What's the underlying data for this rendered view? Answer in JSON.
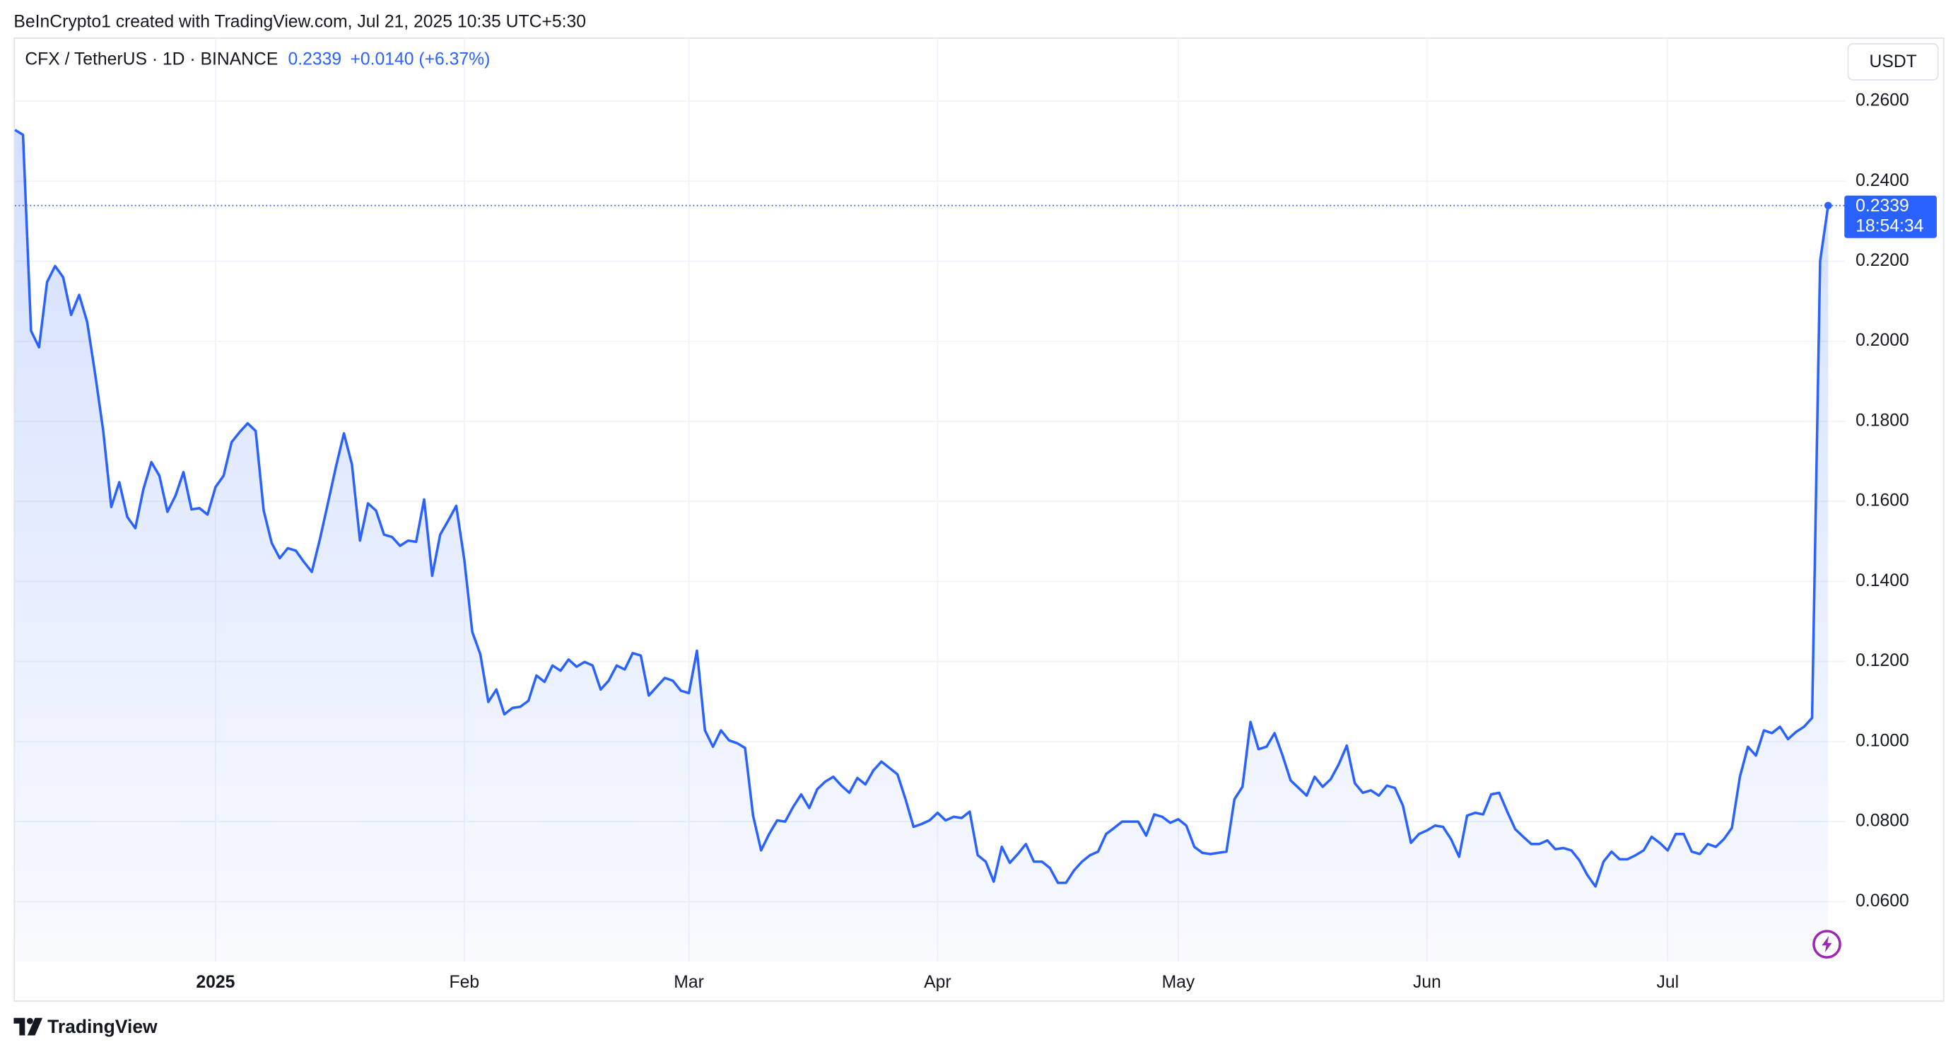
{
  "header": "BeInCrypto1 created with TradingView.com, Jul 21, 2025 10:35 UTC+5:30",
  "footer": "TradingView",
  "chart_data": {
    "type": "line",
    "title": "CFX / TetherUS · 1D · BINANCE",
    "change_label": "+0.0140 (+6.37%)",
    "currency": "USDT",
    "countdown": "18:54:34",
    "color": "#2962ff",
    "grid": true,
    "ylim": [
      0.045,
      0.2759
    ],
    "yticks": [
      {
        "value": 0.06,
        "label": "0.0600"
      },
      {
        "value": 0.08,
        "label": "0.0800"
      },
      {
        "value": 0.1,
        "label": "0.1000"
      },
      {
        "value": 0.12,
        "label": "0.1200"
      },
      {
        "value": 0.14,
        "label": "0.1400"
      },
      {
        "value": 0.16,
        "label": "0.1600"
      },
      {
        "value": 0.18,
        "label": "0.1800"
      },
      {
        "value": 0.2,
        "label": "0.2000"
      },
      {
        "value": 0.22,
        "label": "0.2200"
      },
      {
        "value": 0.24,
        "label": "0.2400"
      },
      {
        "value": 0.26,
        "label": "0.2600"
      }
    ],
    "categories": [
      null,
      null,
      null,
      null,
      null,
      null,
      null,
      null,
      null,
      null,
      null,
      null,
      null,
      null,
      null,
      null,
      null,
      null,
      null,
      null,
      null,
      null,
      null,
      null,
      null,
      "2025",
      null,
      null,
      null,
      null,
      null,
      null,
      null,
      null,
      null,
      null,
      null,
      null,
      null,
      null,
      null,
      null,
      null,
      null,
      null,
      null,
      null,
      null,
      null,
      null,
      null,
      null,
      null,
      null,
      null,
      null,
      "Feb",
      null,
      null,
      null,
      null,
      null,
      null,
      null,
      null,
      null,
      null,
      null,
      null,
      null,
      null,
      null,
      null,
      null,
      null,
      null,
      null,
      null,
      null,
      null,
      null,
      null,
      null,
      null,
      "Mar",
      null,
      null,
      null,
      null,
      null,
      null,
      null,
      null,
      null,
      null,
      null,
      null,
      null,
      null,
      null,
      null,
      null,
      null,
      null,
      null,
      null,
      null,
      null,
      null,
      null,
      null,
      null,
      null,
      null,
      null,
      "Apr",
      null,
      null,
      null,
      null,
      null,
      null,
      null,
      null,
      null,
      null,
      null,
      null,
      null,
      null,
      null,
      null,
      null,
      null,
      null,
      null,
      null,
      null,
      null,
      null,
      null,
      null,
      null,
      null,
      null,
      "May",
      null,
      null,
      null,
      null,
      null,
      null,
      null,
      null,
      null,
      null,
      null,
      null,
      null,
      null,
      null,
      null,
      null,
      null,
      null,
      null,
      null,
      null,
      null,
      null,
      null,
      null,
      null,
      null,
      null,
      null,
      "Jun",
      null,
      null,
      null,
      null,
      null,
      null,
      null,
      null,
      null,
      null,
      null,
      null,
      null,
      null,
      null,
      null,
      null,
      null,
      null,
      null,
      null,
      null,
      null,
      null,
      null,
      null,
      null,
      null,
      null,
      "Jul",
      null,
      null,
      null,
      null,
      null,
      null,
      null,
      null,
      null,
      null,
      null,
      null,
      null,
      null,
      null,
      null,
      null,
      null,
      null,
      null
    ],
    "values": [
      0.2528,
      0.2516,
      0.2026,
      0.1985,
      0.2148,
      0.2188,
      0.216,
      0.2066,
      0.2116,
      0.2048,
      0.1917,
      0.1776,
      0.1586,
      0.1648,
      0.1561,
      0.1533,
      0.163,
      0.1698,
      0.1664,
      0.1574,
      0.1614,
      0.1673,
      0.158,
      0.1583,
      0.1567,
      0.1636,
      0.1664,
      0.1748,
      0.1773,
      0.1795,
      0.1776,
      0.1577,
      0.1496,
      0.1458,
      0.1483,
      0.1477,
      0.1449,
      0.1424,
      0.1505,
      0.1595,
      0.1686,
      0.177,
      0.1692,
      0.1502,
      0.1595,
      0.1577,
      0.1517,
      0.1511,
      0.1489,
      0.1502,
      0.1499,
      0.1605,
      0.1414,
      0.1517,
      0.1552,
      0.1589,
      0.1455,
      0.1274,
      0.1218,
      0.1099,
      0.113,
      0.1068,
      0.1084,
      0.1087,
      0.1102,
      0.1165,
      0.1149,
      0.119,
      0.1177,
      0.1205,
      0.1187,
      0.1199,
      0.119,
      0.113,
      0.1152,
      0.119,
      0.118,
      0.1221,
      0.1215,
      0.1115,
      0.1137,
      0.1159,
      0.1152,
      0.1127,
      0.1121,
      0.1227,
      0.1028,
      0.0987,
      0.1028,
      0.1003,
      0.0996,
      0.0984,
      0.0815,
      0.0728,
      0.0769,
      0.0803,
      0.08,
      0.0837,
      0.0868,
      0.0834,
      0.0881,
      0.09,
      0.0912,
      0.089,
      0.0872,
      0.0909,
      0.0893,
      0.0928,
      0.095,
      0.0934,
      0.0918,
      0.0856,
      0.0787,
      0.0794,
      0.0803,
      0.0822,
      0.0803,
      0.0812,
      0.0809,
      0.0825,
      0.0716,
      0.07,
      0.065,
      0.0737,
      0.0697,
      0.0719,
      0.0744,
      0.07,
      0.07,
      0.0684,
      0.0647,
      0.0647,
      0.0678,
      0.07,
      0.0716,
      0.0725,
      0.0769,
      0.0784,
      0.08,
      0.08,
      0.08,
      0.0765,
      0.0818,
      0.0812,
      0.0797,
      0.0806,
      0.079,
      0.0737,
      0.0722,
      0.0719,
      0.0722,
      0.0725,
      0.0856,
      0.0887,
      0.1049,
      0.0981,
      0.0987,
      0.1021,
      0.0965,
      0.0903,
      0.0884,
      0.0865,
      0.0912,
      0.0887,
      0.0906,
      0.0943,
      0.099,
      0.0896,
      0.0872,
      0.0878,
      0.0865,
      0.089,
      0.0884,
      0.084,
      0.0747,
      0.0769,
      0.0778,
      0.079,
      0.0787,
      0.0756,
      0.0712,
      0.0815,
      0.0822,
      0.0818,
      0.0868,
      0.0872,
      0.0825,
      0.0781,
      0.0762,
      0.0744,
      0.0744,
      0.0753,
      0.0731,
      0.0734,
      0.0728,
      0.0703,
      0.0666,
      0.0638,
      0.07,
      0.0725,
      0.0706,
      0.0706,
      0.0716,
      0.0728,
      0.0762,
      0.0747,
      0.0728,
      0.0769,
      0.0769,
      0.0725,
      0.0719,
      0.0744,
      0.0737,
      0.0756,
      0.0784,
      0.0912,
      0.0987,
      0.0965,
      0.1028,
      0.1021,
      0.1037,
      0.1006,
      0.1024,
      0.1037,
      0.1059,
      0.22,
      0.2339
    ]
  }
}
